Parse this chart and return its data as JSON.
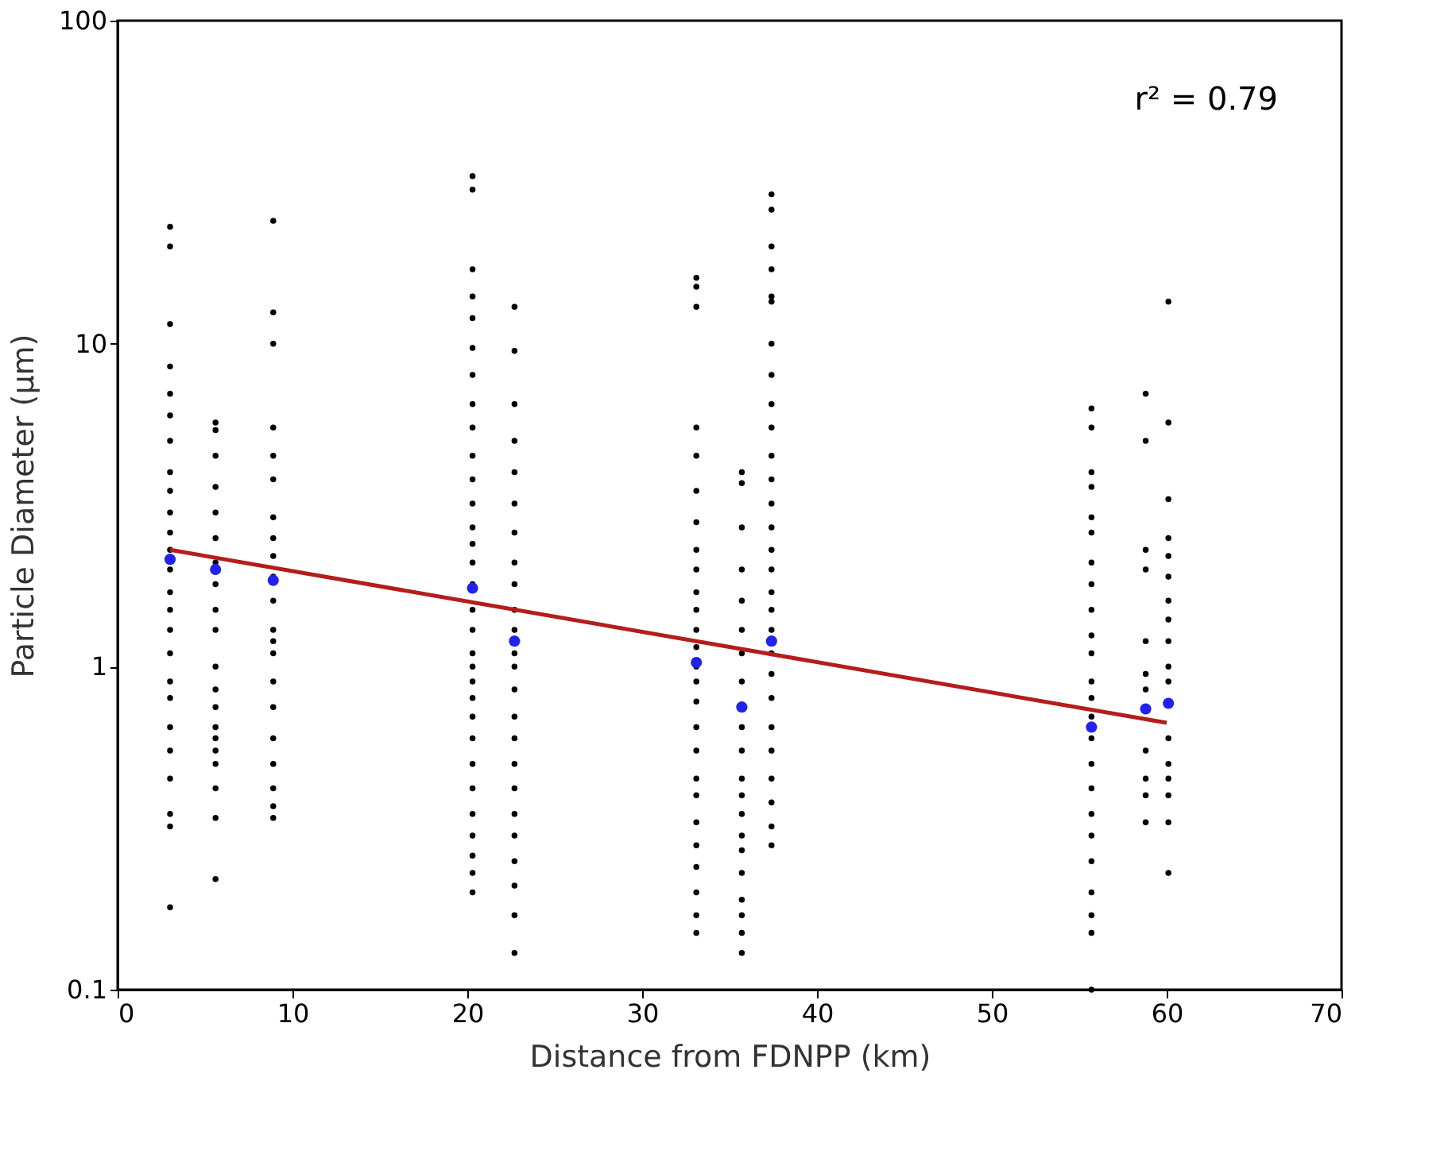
{
  "chart_data": {
    "type": "scatter",
    "xlabel": "Distance from FDNPP (km)",
    "ylabel": "Particle Diameter (µm)",
    "log": "y",
    "grid": false,
    "marker": "circle",
    "xlim": [
      0,
      70
    ],
    "xticks": [
      0,
      10,
      20,
      30,
      40,
      50,
      60,
      70
    ],
    "ylim": [
      0.1,
      100
    ],
    "yticks": [
      0.1,
      1,
      10,
      100
    ],
    "annotations": [
      "r² = 0.79"
    ],
    "series": [
      {
        "color": "#000000",
        "x": [
          3,
          3,
          3,
          3,
          3,
          3,
          3,
          3,
          3,
          3,
          3,
          3,
          3,
          3,
          3,
          3,
          3,
          3,
          3,
          3,
          3,
          3,
          3,
          3,
          3,
          5.6,
          5.6,
          5.6,
          5.6,
          5.6,
          5.6,
          5.6,
          5.6,
          5.6,
          5.6,
          5.6,
          5.6,
          5.6,
          5.6,
          5.6,
          5.6,
          5.6,
          5.6,
          5.6,
          5.6,
          8.9,
          8.9,
          8.9,
          8.9,
          8.9,
          8.9,
          8.9,
          8.9,
          8.9,
          8.9,
          8.9,
          8.9,
          8.9,
          8.9,
          8.9,
          8.9,
          8.9,
          8.9,
          8.9,
          8.9,
          8.9,
          20.3,
          20.3,
          20.3,
          20.3,
          20.3,
          20.3,
          20.3,
          20.3,
          20.3,
          20.3,
          20.3,
          20.3,
          20.3,
          20.3,
          20.3,
          20.3,
          20.3,
          20.3,
          20.3,
          20.3,
          20.3,
          20.3,
          20.3,
          20.3,
          20.3,
          20.3,
          20.3,
          20.3,
          20.3,
          20.3,
          20.3,
          22.7,
          22.7,
          22.7,
          22.7,
          22.7,
          22.7,
          22.7,
          22.7,
          22.7,
          22.7,
          22.7,
          22.7,
          22.7,
          22.7,
          22.7,
          22.7,
          22.7,
          22.7,
          22.7,
          22.7,
          22.7,
          22.7,
          22.7,
          22.7,
          33.1,
          33.1,
          33.1,
          33.1,
          33.1,
          33.1,
          33.1,
          33.1,
          33.1,
          33.1,
          33.1,
          33.1,
          33.1,
          33.1,
          33.1,
          33.1,
          33.1,
          33.1,
          33.1,
          33.1,
          33.1,
          33.1,
          33.1,
          33.1,
          33.1,
          33.1,
          35.7,
          35.7,
          35.7,
          35.7,
          35.7,
          35.7,
          35.7,
          35.7,
          35.7,
          35.7,
          35.7,
          35.7,
          35.7,
          35.7,
          35.7,
          35.7,
          35.7,
          35.7,
          35.7,
          35.7,
          37.4,
          37.4,
          37.4,
          37.4,
          37.4,
          37.4,
          37.4,
          37.4,
          37.4,
          37.4,
          37.4,
          37.4,
          37.4,
          37.4,
          37.4,
          37.4,
          37.4,
          37.4,
          37.4,
          37.4,
          37.4,
          37.4,
          37.4,
          37.4,
          37.4,
          37.4,
          37.4,
          37.4,
          55.7,
          55.7,
          55.7,
          55.7,
          55.7,
          55.7,
          55.7,
          55.7,
          55.7,
          55.7,
          55.7,
          55.7,
          55.7,
          55.7,
          55.7,
          55.7,
          55.7,
          55.7,
          55.7,
          55.7,
          55.7,
          55.7,
          55.7,
          55.7,
          58.8,
          58.8,
          58.8,
          58.8,
          58.8,
          58.8,
          58.8,
          58.8,
          58.8,
          58.8,
          58.8,
          60.1,
          60.1,
          60.1,
          60.1,
          60.1,
          60.1,
          60.1,
          60.1,
          60.1,
          60.1,
          60.1,
          60.1,
          60.1,
          60.1,
          60.1,
          60.1,
          60.1
        ],
        "values": [
          23,
          20,
          11.5,
          8.5,
          7,
          6,
          5,
          4,
          3.5,
          3,
          2.6,
          2.3,
          2,
          1.7,
          1.5,
          1.3,
          1.1,
          0.9,
          0.8,
          0.65,
          0.55,
          0.45,
          0.35,
          0.32,
          0.18,
          5.7,
          5.4,
          4.5,
          3.6,
          3,
          2.5,
          2.1,
          1.8,
          1.5,
          1.3,
          1.0,
          0.85,
          0.75,
          0.65,
          0.6,
          0.55,
          0.5,
          0.42,
          0.34,
          0.22,
          24,
          12.5,
          10,
          5.5,
          4.5,
          3.8,
          2.9,
          2.5,
          2.2,
          1.9,
          1.6,
          1.3,
          1.2,
          1.1,
          0.9,
          0.75,
          0.6,
          0.5,
          0.42,
          0.37,
          0.34,
          33,
          30,
          17,
          14,
          12,
          9.7,
          8,
          6.5,
          5.5,
          4.5,
          3.8,
          3.2,
          2.7,
          2.4,
          2.1,
          1.8,
          1.5,
          1.3,
          1.1,
          1.0,
          0.9,
          0.8,
          0.7,
          0.6,
          0.5,
          0.42,
          0.35,
          0.3,
          0.26,
          0.23,
          0.2,
          13,
          9.5,
          6.5,
          5,
          4,
          3.2,
          2.6,
          2.1,
          1.8,
          1.5,
          1.3,
          1.1,
          1.0,
          0.85,
          0.7,
          0.6,
          0.5,
          0.42,
          0.35,
          0.3,
          0.25,
          0.21,
          0.17,
          0.13,
          16,
          15,
          13,
          5.5,
          4.5,
          3.5,
          2.8,
          2.3,
          2.0,
          1.7,
          1.5,
          1.3,
          1.15,
          1.0,
          0.9,
          0.78,
          0.65,
          0.55,
          0.45,
          0.4,
          0.33,
          0.28,
          0.24,
          0.2,
          0.17,
          0.15,
          4.0,
          3.7,
          2.7,
          2.0,
          1.6,
          1.3,
          1.1,
          0.9,
          0.65,
          0.55,
          0.45,
          0.4,
          0.35,
          0.3,
          0.27,
          0.23,
          0.19,
          0.17,
          0.15,
          0.13,
          29,
          26,
          20,
          17,
          14,
          13.5,
          10,
          8,
          6.5,
          5.5,
          4.5,
          3.8,
          3.2,
          2.7,
          2.3,
          2.0,
          1.7,
          1.5,
          1.3,
          1.1,
          0.95,
          0.8,
          0.65,
          0.55,
          0.45,
          0.38,
          0.32,
          0.28,
          6.3,
          5.5,
          4.0,
          3.6,
          2.9,
          2.6,
          2.1,
          1.8,
          1.5,
          1.25,
          1.1,
          0.9,
          0.8,
          0.7,
          0.6,
          0.5,
          0.42,
          0.35,
          0.3,
          0.25,
          0.2,
          0.17,
          0.15,
          0.1,
          7,
          5,
          2.3,
          2.0,
          1.2,
          0.95,
          0.85,
          0.55,
          0.45,
          0.4,
          0.33,
          13.5,
          5.7,
          3.3,
          2.5,
          2.2,
          1.9,
          1.6,
          1.4,
          1.2,
          1.0,
          0.9,
          0.6,
          0.5,
          0.45,
          0.4,
          0.33,
          0.23
        ]
      },
      {
        "color": "#2222ee",
        "x": [
          3,
          5.6,
          8.9,
          20.3,
          22.7,
          33.1,
          35.7,
          37.4,
          55.7,
          58.8,
          60.1
        ],
        "values": [
          2.15,
          2.0,
          1.85,
          1.75,
          1.2,
          1.03,
          0.75,
          1.2,
          0.65,
          0.74,
          0.77
        ]
      },
      {
        "type": "line",
        "marker": "none",
        "color": "#b51c1c",
        "x": [
          3,
          60
        ],
        "values": [
          2.3,
          0.67
        ]
      }
    ]
  }
}
